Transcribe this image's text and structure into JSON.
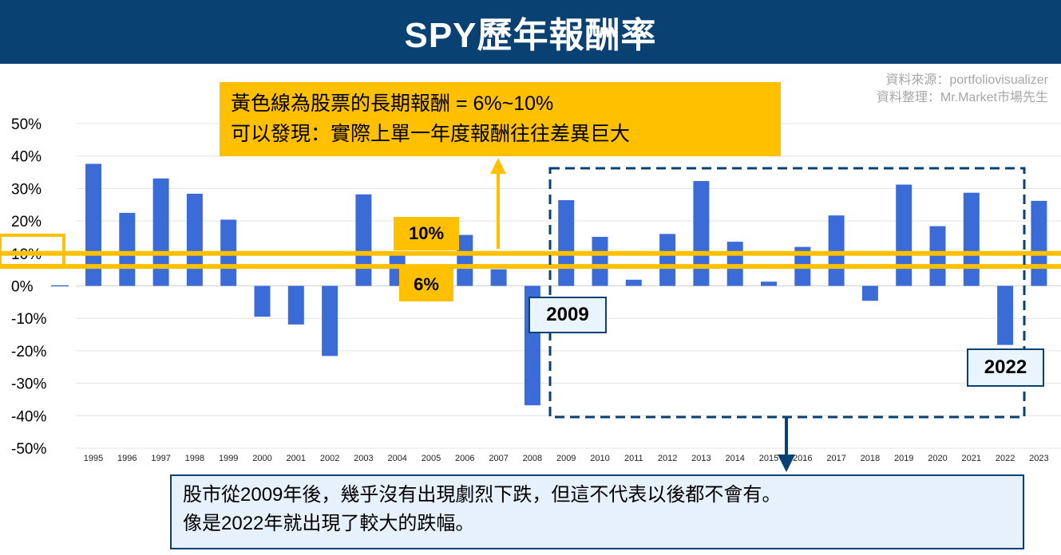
{
  "header": {
    "title": "SPY歷年報酬率"
  },
  "source": {
    "line1": "資料來源：portfoliovisualizer",
    "line2": "資料整理：Mr.Market市場先生"
  },
  "callout": {
    "line1": "黃色線為股票的長期報酬 = 6%~10%",
    "line2": "可以發現：實際上單一年度報酬往往差異巨大"
  },
  "tags": {
    "upper": "10%",
    "lower": "6%"
  },
  "highlight": {
    "start_label": "2009",
    "end_label": "2022"
  },
  "note": {
    "line1": "股市從2009年後，幾乎沒有出現劇烈下跌，但這不代表以後都不會有。",
    "line2": "像是2022年就出現了較大的跌幅。"
  },
  "colors": {
    "bar": "#3b6bd6",
    "reference_line": "#ffc000",
    "title_bg": "#0a4173",
    "box_border": "#0a4173"
  },
  "chart_data": {
    "type": "bar",
    "title": "SPY歷年報酬率",
    "categories": [
      "1995",
      "1996",
      "1997",
      "1998",
      "1999",
      "2000",
      "2001",
      "2002",
      "2003",
      "2004",
      "2005",
      "2006",
      "2007",
      "2008",
      "2009",
      "2010",
      "2011",
      "2012",
      "2013",
      "2014",
      "2015",
      "2016",
      "2017",
      "2018",
      "2019",
      "2020",
      "2021",
      "2022",
      "2023"
    ],
    "series": [
      {
        "values": [
          37.6,
          22.5,
          33.1,
          28.4,
          20.4,
          -9.5,
          -11.9,
          -21.6,
          28.2,
          10.7,
          4.8,
          15.7,
          5.1,
          -36.8,
          26.4,
          15.1,
          1.9,
          16.0,
          32.3,
          13.6,
          1.3,
          12.0,
          21.7,
          -4.6,
          31.2,
          18.4,
          28.7,
          -18.2,
          26.2
        ]
      }
    ],
    "ylim": [
      -50,
      50
    ],
    "yticks": [
      "50%",
      "40%",
      "30%",
      "20%",
      "10%",
      "0%",
      "-10%",
      "-20%",
      "-30%",
      "-40%",
      "-50%"
    ],
    "reference_lines": [
      10,
      6
    ],
    "grid": true,
    "xlabel": "",
    "ylabel": ""
  }
}
